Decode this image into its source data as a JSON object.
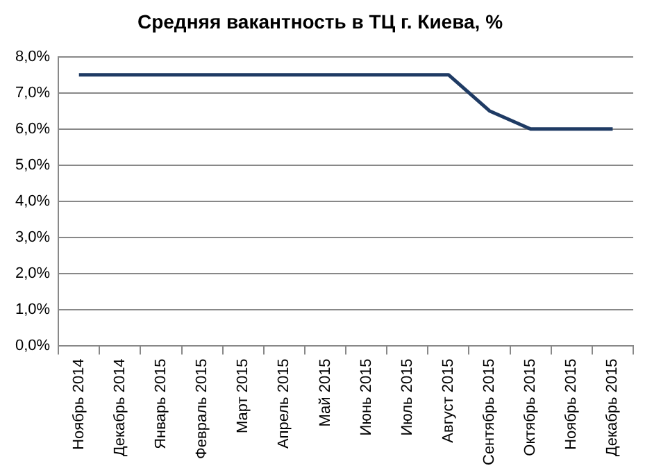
{
  "chart_data": {
    "type": "line",
    "title": "Средняя вакантность в ТЦ г. Киева, %",
    "categories": [
      "Ноябрь 2014",
      "Декабрь 2014",
      "Январь 2015",
      "Февраль 2015",
      "Март 2015",
      "Апрель 2015",
      "Май 2015",
      "Июнь 2015",
      "Июль 2015",
      "Август 2015",
      "Сентябрь 2015",
      "Октябрь 2015",
      "Ноябрь 2015",
      "Декабрь 2015"
    ],
    "series": [
      {
        "color": "#1f3b64",
        "values": [
          7.5,
          7.5,
          7.5,
          7.5,
          7.5,
          7.5,
          7.5,
          7.5,
          7.5,
          7.5,
          6.5,
          6.0,
          6.0,
          6.0
        ]
      }
    ],
    "ylim": [
      0,
      8
    ],
    "yticks": [
      {
        "value": 0,
        "label": "0,0%"
      },
      {
        "value": 1,
        "label": "1,0%"
      },
      {
        "value": 2,
        "label": "2,0%"
      },
      {
        "value": 3,
        "label": "3,0%"
      },
      {
        "value": 4,
        "label": "4,0%"
      },
      {
        "value": 5,
        "label": "5,0%"
      },
      {
        "value": 6,
        "label": "6,0%"
      },
      {
        "value": 7,
        "label": "7,0%"
      },
      {
        "value": 8,
        "label": "8,0%"
      }
    ],
    "grid": "y",
    "legend": false,
    "marker": "none",
    "line_style": "solid"
  }
}
